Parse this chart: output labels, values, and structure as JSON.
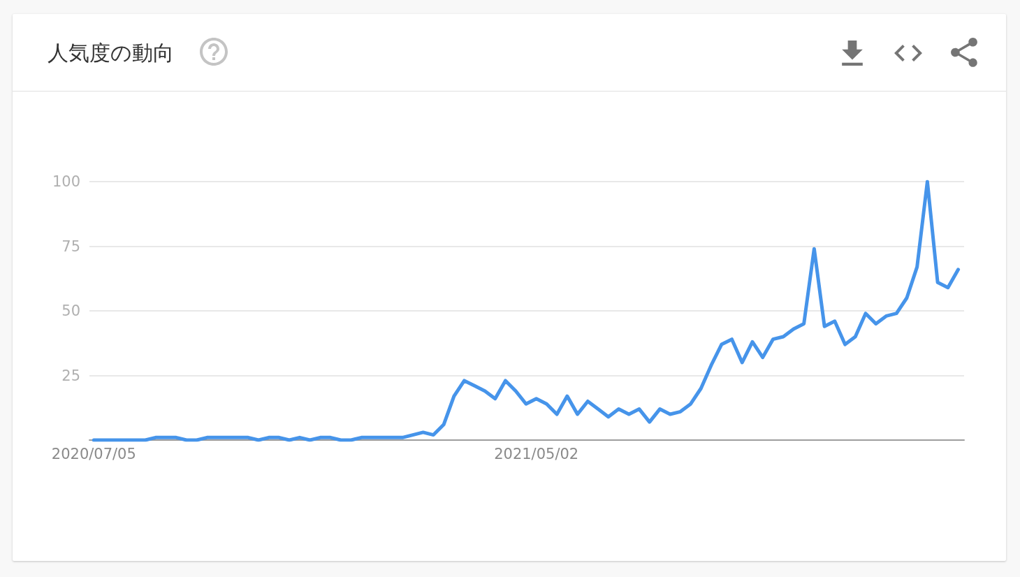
{
  "chart_data": {
    "type": "line",
    "title": "人気度の動向",
    "x": [
      "2020-07-05",
      "2020-07-12",
      "2020-07-19",
      "2020-07-26",
      "2020-08-02",
      "2020-08-09",
      "2020-08-16",
      "2020-08-23",
      "2020-08-30",
      "2020-09-06",
      "2020-09-13",
      "2020-09-20",
      "2020-09-27",
      "2020-10-04",
      "2020-10-11",
      "2020-10-18",
      "2020-10-25",
      "2020-11-01",
      "2020-11-08",
      "2020-11-15",
      "2020-11-22",
      "2020-11-29",
      "2020-12-06",
      "2020-12-13",
      "2020-12-20",
      "2020-12-27",
      "2021-01-03",
      "2021-01-10",
      "2021-01-17",
      "2021-01-24",
      "2021-01-31",
      "2021-02-07",
      "2021-02-14",
      "2021-02-21",
      "2021-02-28",
      "2021-03-07",
      "2021-03-14",
      "2021-03-21",
      "2021-03-28",
      "2021-04-04",
      "2021-04-11",
      "2021-04-18",
      "2021-04-25",
      "2021-05-02",
      "2021-05-09",
      "2021-05-16",
      "2021-05-23",
      "2021-05-30",
      "2021-06-06",
      "2021-06-13",
      "2021-06-20",
      "2021-06-27",
      "2021-07-04",
      "2021-07-11",
      "2021-07-18",
      "2021-07-25",
      "2021-08-01",
      "2021-08-08",
      "2021-08-15",
      "2021-08-22",
      "2021-08-29",
      "2021-09-05",
      "2021-09-12",
      "2021-09-19",
      "2021-09-26",
      "2021-10-03",
      "2021-10-10",
      "2021-10-17",
      "2021-10-24",
      "2021-10-31",
      "2021-11-07",
      "2021-11-14",
      "2021-11-21",
      "2021-11-28",
      "2021-12-05",
      "2021-12-12",
      "2021-12-19",
      "2021-12-26",
      "2022-01-02",
      "2022-01-09",
      "2022-01-16",
      "2022-01-23",
      "2022-01-30",
      "2022-02-06",
      "2022-02-13"
    ],
    "values": [
      0,
      0,
      0,
      0,
      0,
      0,
      1,
      1,
      1,
      0,
      0,
      1,
      1,
      1,
      1,
      1,
      0,
      1,
      1,
      0,
      1,
      0,
      1,
      1,
      0,
      0,
      1,
      1,
      1,
      1,
      1,
      2,
      3,
      2,
      6,
      17,
      23,
      21,
      19,
      16,
      23,
      19,
      14,
      16,
      14,
      10,
      17,
      10,
      15,
      12,
      9,
      12,
      10,
      12,
      7,
      12,
      10,
      11,
      14,
      20,
      29,
      37,
      39,
      30,
      38,
      32,
      39,
      40,
      43,
      45,
      74,
      44,
      46,
      37,
      40,
      49,
      45,
      48,
      49,
      55,
      67,
      100,
      61,
      59,
      66
    ],
    "color": "#4694ea",
    "marker": "none",
    "line_style": "solid",
    "xlim": [
      "2020-07-02",
      "2022-02-17"
    ],
    "xticks": [
      {
        "value": "2020-07-05",
        "label": "2020/07/05"
      },
      {
        "value": "2021-05-02",
        "label": "2021/05/02"
      }
    ],
    "ylim": [
      0,
      100
    ],
    "yticks": [
      25,
      50,
      75,
      100
    ],
    "grid": "y"
  }
}
